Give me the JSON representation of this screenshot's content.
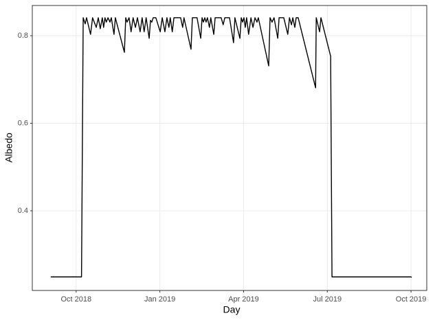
{
  "chart_data": {
    "type": "line",
    "x_label": "Day",
    "y_label": "Albedo",
    "xlim": [
      2018.619,
      2019.797
    ],
    "xticks": [
      {
        "value": 2018.75,
        "label": "Oct 2018"
      },
      {
        "value": 2019.0,
        "label": "Jan 2019"
      },
      {
        "value": 2019.25,
        "label": "Apr 2019"
      },
      {
        "value": 2019.5,
        "label": "Jul 2019"
      },
      {
        "value": 2019.75,
        "label": "Oct 2019"
      }
    ],
    "ylim": [
      0.218,
      0.869
    ],
    "yticks": [
      0.4,
      0.6,
      0.8
    ],
    "grid": true,
    "series": [
      {
        "color": "#000000",
        "x": [
          2018.674,
          2018.766,
          2018.771,
          2018.777,
          2018.781,
          2018.793,
          2018.799,
          2018.81,
          2018.816,
          2018.822,
          2018.828,
          2018.832,
          2018.836,
          2018.84,
          2018.845,
          2018.851,
          2018.855,
          2018.863,
          2018.867,
          2018.894,
          2018.898,
          2018.902,
          2018.908,
          2018.914,
          2018.92,
          2018.927,
          2018.933,
          2018.941,
          2018.947,
          2018.953,
          2018.959,
          2018.968,
          2018.972,
          2018.976,
          2018.98,
          2018.988,
          2019.001,
          2019.007,
          2019.015,
          2019.021,
          2019.027,
          2019.031,
          2019.037,
          2019.042,
          2019.062,
          2019.068,
          2019.072,
          2019.093,
          2019.097,
          2019.111,
          2019.122,
          2019.126,
          2019.13,
          2019.134,
          2019.138,
          2019.142,
          2019.148,
          2019.152,
          2019.161,
          2019.165,
          2019.183,
          2019.189,
          2019.194,
          2019.208,
          2019.22,
          2019.224,
          2019.239,
          2019.243,
          2019.247,
          2019.251,
          2019.255,
          2019.259,
          2019.265,
          2019.272,
          2019.278,
          2019.284,
          2019.29,
          2019.294,
          2019.325,
          2019.329,
          2019.335,
          2019.341,
          2019.352,
          2019.356,
          2019.37,
          2019.382,
          2019.387,
          2019.393,
          2019.397,
          2019.403,
          2019.407,
          2019.413,
          2019.465,
          2019.467,
          2019.477,
          2019.481,
          2019.51,
          2019.514,
          2019.75,
          2019.752
        ],
        "values": [
          0.249,
          0.249,
          0.841,
          0.827,
          0.841,
          0.803,
          0.841,
          0.819,
          0.841,
          0.816,
          0.841,
          0.819,
          0.841,
          0.831,
          0.841,
          0.831,
          0.841,
          0.803,
          0.841,
          0.762,
          0.841,
          0.831,
          0.841,
          0.809,
          0.841,
          0.819,
          0.841,
          0.809,
          0.841,
          0.809,
          0.841,
          0.794,
          0.835,
          0.831,
          0.841,
          0.841,
          0.809,
          0.841,
          0.809,
          0.841,
          0.819,
          0.841,
          0.809,
          0.841,
          0.841,
          0.819,
          0.841,
          0.769,
          0.841,
          0.841,
          0.794,
          0.841,
          0.831,
          0.841,
          0.831,
          0.841,
          0.819,
          0.841,
          0.803,
          0.841,
          0.841,
          0.825,
          0.841,
          0.841,
          0.784,
          0.841,
          0.794,
          0.841,
          0.831,
          0.841,
          0.819,
          0.841,
          0.803,
          0.841,
          0.819,
          0.841,
          0.831,
          0.841,
          0.731,
          0.841,
          0.831,
          0.841,
          0.794,
          0.841,
          0.841,
          0.803,
          0.841,
          0.825,
          0.841,
          0.819,
          0.841,
          0.841,
          0.681,
          0.841,
          0.809,
          0.841,
          0.753,
          0.249,
          0.249,
          0.248
        ]
      }
    ]
  }
}
